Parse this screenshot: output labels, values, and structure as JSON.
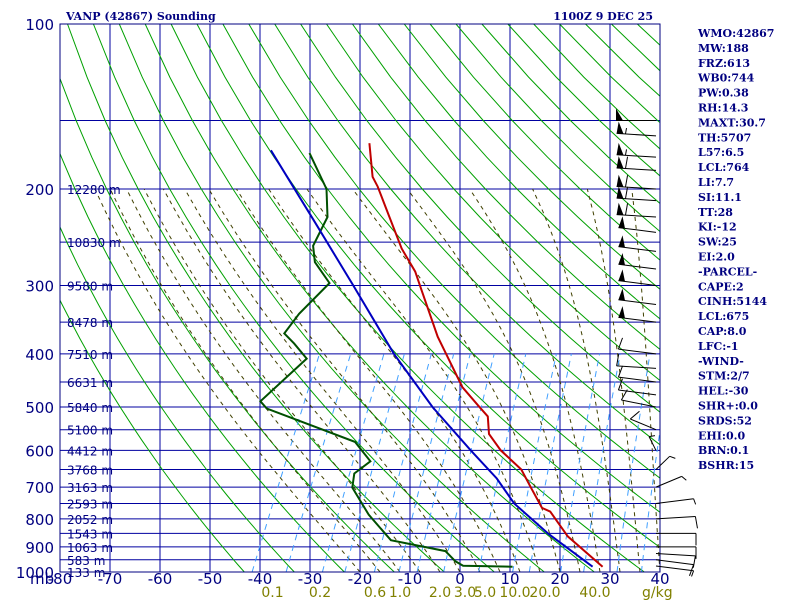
{
  "title_left": "VANP (42867) Sounding",
  "title_right": "1100Z  9 DEC 25",
  "colors": {
    "grid": "#0000a0",
    "dry_adiabat": "#00a000",
    "moist_adiabat": "#404000",
    "mixing_ratio": "#40a0ff",
    "temperature": "#c00000",
    "dewpoint": "#005000",
    "parcel": "#0000c0",
    "wind": "#000000"
  },
  "indices": [
    "WMO:42867",
    "MW:188",
    "FRZ:613",
    "WB0:744",
    "PW:0.38",
    "RH:14.3",
    "MAXT:30.7",
    "TH:5707",
    "L57:6.5",
    "LCL:764",
    "LI:7.7",
    "SI:11.1",
    "TT:28",
    "KI:-12",
    "SW:25",
    "EI:2.0",
    "-PARCEL-",
    "CAPE:2",
    "CINH:5144",
    "LCL:675",
    "CAP:8.0",
    "LFC:-1",
    "-WIND-",
    "STM:2/7",
    "HEL:-30",
    "SHR+:0.0",
    "SRDS:52",
    "EHI:0.0",
    "BRN:0.1",
    "BSHR:15"
  ],
  "chart_data": {
    "type": "line",
    "title": "VANP (42867) Sounding",
    "subtitle": "1100Z  9 DEC 25",
    "xlabel": "",
    "ylabel": "mb",
    "xlim": [
      -80,
      40
    ],
    "ylim": [
      1000,
      100
    ],
    "y_scale": "log",
    "x_ticks": [
      -80,
      -70,
      -60,
      -50,
      -40,
      -30,
      -20,
      -10,
      0,
      10,
      20,
      30,
      40
    ],
    "x_tick_labels": [
      "-80",
      "-70",
      "-60",
      "-50",
      "-40",
      "-30",
      "-20",
      "-10",
      "0",
      "10",
      "20",
      "30",
      "40"
    ],
    "x_unit_label": "g/kg",
    "y_unit_label": "mb",
    "pressure_tick_labels": [
      {
        "p": 100,
        "label": "100"
      },
      {
        "p": 200,
        "label": "200"
      },
      {
        "p": 300,
        "label": "300"
      },
      {
        "p": 400,
        "label": "400"
      },
      {
        "p": 500,
        "label": "500"
      },
      {
        "p": 600,
        "label": "600"
      },
      {
        "p": 700,
        "label": "700"
      },
      {
        "p": 800,
        "label": "800"
      },
      {
        "p": 900,
        "label": "900"
      },
      {
        "p": 1000,
        "label": "1000"
      }
    ],
    "pressure_lines": [
      100,
      150,
      200,
      250,
      300,
      350,
      400,
      450,
      500,
      550,
      600,
      650,
      700,
      750,
      800,
      850,
      900,
      950,
      1000
    ],
    "height_labels": [
      {
        "p": 200,
        "label": "12280 m"
      },
      {
        "p": 250,
        "label": "10830 m"
      },
      {
        "p": 300,
        "label": "9580 m"
      },
      {
        "p": 350,
        "label": "8478 m"
      },
      {
        "p": 400,
        "label": "7510 m"
      },
      {
        "p": 450,
        "label": "6631 m"
      },
      {
        "p": 500,
        "label": "5840 m"
      },
      {
        "p": 550,
        "label": "5100 m"
      },
      {
        "p": 600,
        "label": "4412 m"
      },
      {
        "p": 650,
        "label": "3768 m"
      },
      {
        "p": 700,
        "label": "3163 m"
      },
      {
        "p": 750,
        "label": "2593 m"
      },
      {
        "p": 800,
        "label": "2052 m"
      },
      {
        "p": 850,
        "label": "1543 m"
      },
      {
        "p": 900,
        "label": "1063 m"
      },
      {
        "p": 950,
        "label": "583 m"
      },
      {
        "p": 1000,
        "label": "133 m"
      }
    ],
    "mixing_ratio_labels": [
      {
        "t": -37.5,
        "label": "0.1"
      },
      {
        "t": -28,
        "label": "0.2"
      },
      {
        "t": -17,
        "label": "0.6"
      },
      {
        "t": -12,
        "label": "1.0"
      },
      {
        "t": -4,
        "label": "2.0"
      },
      {
        "t": 1,
        "label": "3.0"
      },
      {
        "t": 5,
        "label": "5.0"
      },
      {
        "t": 11,
        "label": "10.0"
      },
      {
        "t": 17,
        "label": "20.0"
      },
      {
        "t": 27,
        "label": "40.0"
      }
    ],
    "grid": true,
    "series": [
      {
        "key": "temperature",
        "points": [
          [
            28,
            978
          ],
          [
            18,
            861
          ],
          [
            12,
            776
          ],
          [
            10,
            764
          ],
          [
            6,
            705
          ],
          [
            2,
            650
          ],
          [
            -4,
            600
          ],
          [
            -8,
            560
          ],
          [
            -10,
            520
          ],
          [
            -13,
            497
          ],
          [
            -18,
            460
          ],
          [
            -24,
            405
          ],
          [
            -28,
            372
          ],
          [
            -36,
            305
          ],
          [
            -39,
            283
          ],
          [
            -44,
            257
          ],
          [
            -50,
            223
          ],
          [
            -55,
            198
          ],
          [
            -57,
            190
          ],
          [
            -61,
            165
          ]
        ]
      },
      {
        "key": "dewpoint",
        "points": [
          [
            10,
            978
          ],
          [
            0,
            974
          ],
          [
            -2,
            956
          ],
          [
            -5,
            916
          ],
          [
            -17,
            875
          ],
          [
            -24,
            786
          ],
          [
            -30,
            701
          ],
          [
            -31,
            661
          ],
          [
            -29,
            628
          ],
          [
            -34,
            579
          ],
          [
            -55,
            503
          ],
          [
            -57,
            488
          ],
          [
            -52,
            408
          ],
          [
            -56,
            383
          ],
          [
            -59,
            367
          ],
          [
            -58,
            338
          ],
          [
            -55,
            297
          ],
          [
            -60,
            272
          ],
          [
            -62,
            254
          ],
          [
            -62,
            225
          ],
          [
            -65,
            200
          ],
          [
            -72,
            172
          ]
        ]
      },
      {
        "key": "parcel",
        "points": [
          [
            26,
            978
          ],
          [
            14,
            853
          ],
          [
            4,
            750
          ],
          [
            -2,
            675
          ],
          [
            -10,
            600
          ],
          [
            -22,
            500
          ],
          [
            -35,
            400
          ],
          [
            -50,
            300
          ],
          [
            -64,
            230
          ],
          [
            -80,
            170
          ]
        ]
      }
    ],
    "wind_profile": [
      {
        "p": 975,
        "dir": 110,
        "spd": 5
      },
      {
        "p": 950,
        "dir": 110,
        "spd": 10
      },
      {
        "p": 925,
        "dir": 100,
        "spd": 10
      },
      {
        "p": 900,
        "dir": 90,
        "spd": 10
      },
      {
        "p": 850,
        "dir": 90,
        "spd": 10
      },
      {
        "p": 800,
        "dir": 80,
        "spd": 10
      },
      {
        "p": 750,
        "dir": 70,
        "spd": 5
      },
      {
        "p": 700,
        "dir": 40,
        "spd": 5
      },
      {
        "p": 650,
        "dir": 20,
        "spd": 5
      },
      {
        "p": 600,
        "dir": 350,
        "spd": 5
      },
      {
        "p": 550,
        "dir": 320,
        "spd": 10
      },
      {
        "p": 500,
        "dir": 300,
        "spd": 10
      },
      {
        "p": 475,
        "dir": 290,
        "spd": 10
      },
      {
        "p": 450,
        "dir": 290,
        "spd": 10
      },
      {
        "p": 425,
        "dir": 280,
        "spd": 10
      },
      {
        "p": 400,
        "dir": 290,
        "spd": 10
      },
      {
        "p": 350,
        "dir": 290,
        "spd": 50
      },
      {
        "p": 325,
        "dir": 290,
        "spd": 50
      },
      {
        "p": 300,
        "dir": 290,
        "spd": 50
      },
      {
        "p": 280,
        "dir": 290,
        "spd": 50
      },
      {
        "p": 260,
        "dir": 290,
        "spd": 50
      },
      {
        "p": 240,
        "dir": 290,
        "spd": 50
      },
      {
        "p": 225,
        "dir": 280,
        "spd": 60
      },
      {
        "p": 210,
        "dir": 280,
        "spd": 60
      },
      {
        "p": 200,
        "dir": 280,
        "spd": 60
      },
      {
        "p": 185,
        "dir": 280,
        "spd": 60
      },
      {
        "p": 175,
        "dir": 280,
        "spd": 55
      },
      {
        "p": 160,
        "dir": 280,
        "spd": 55
      },
      {
        "p": 150,
        "dir": 270,
        "spd": 50
      }
    ]
  }
}
